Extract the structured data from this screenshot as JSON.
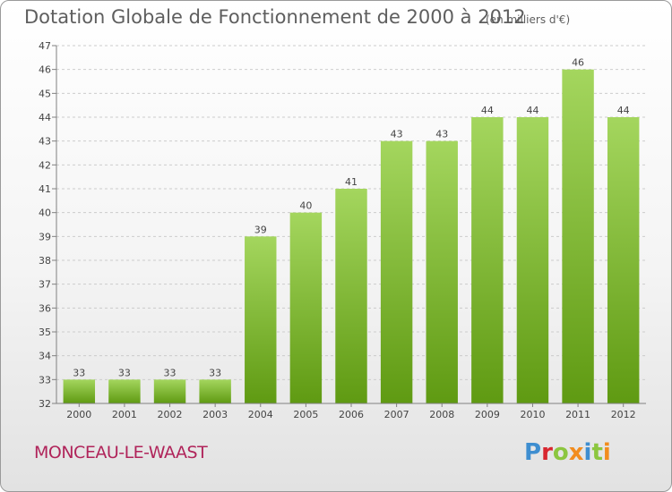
{
  "header": {
    "title": "Dotation Globale de Fonctionnement de 2000 à 2012",
    "unit_note": "(en milliers d'€)"
  },
  "footer": {
    "commune": "MONCEAU-LE-WAAST",
    "logo": "Proxiti"
  },
  "colors": {
    "bar_light": "#a4d65e",
    "bar_dark": "#5f9a12",
    "axis": "#808080",
    "grid": "#cccccc",
    "text": "#444444"
  },
  "chart_data": {
    "type": "bar",
    "title": "Dotation Globale de Fonctionnement de 2000 à 2012",
    "subtitle": "(en milliers d'€)",
    "xlabel": "",
    "ylabel": "",
    "categories": [
      "2000",
      "2001",
      "2002",
      "2003",
      "2004",
      "2005",
      "2006",
      "2007",
      "2008",
      "2009",
      "2010",
      "2011",
      "2012"
    ],
    "values": [
      33,
      33,
      33,
      33,
      39,
      40,
      41,
      43,
      43,
      44,
      44,
      46,
      44
    ],
    "data_labels": [
      "33",
      "33",
      "33",
      "33",
      "39",
      "40",
      "41",
      "43",
      "43",
      "44",
      "44",
      "46",
      "44"
    ],
    "ylim": [
      32,
      47
    ],
    "yticks": [
      32,
      33,
      34,
      35,
      36,
      37,
      38,
      39,
      40,
      41,
      42,
      43,
      44,
      45,
      46,
      47
    ],
    "grid": "horizontal dashed",
    "legend": "none"
  }
}
